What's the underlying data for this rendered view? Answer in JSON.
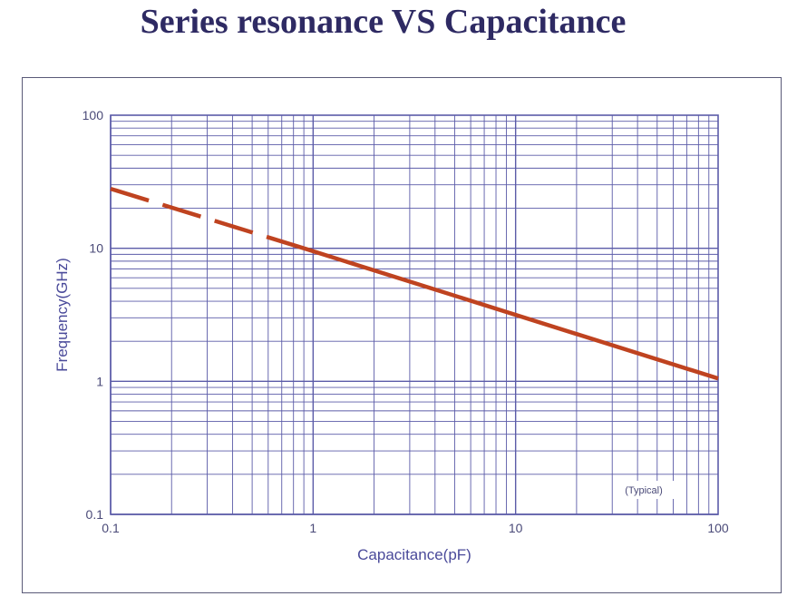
{
  "title": "Series resonance VS Capacitance",
  "colors": {
    "grid": "#5b5ba8",
    "series": "#bf4320",
    "text": "#4a4a78",
    "title": "#2e2a63"
  },
  "chart_data": {
    "type": "line",
    "title": "Series resonance VS Capacitance",
    "xlabel": "Capacitance(pF)",
    "ylabel": "Frequency(GHz)",
    "xscale": "log",
    "yscale": "log",
    "xlim": [
      0.1,
      100
    ],
    "ylim": [
      0.1,
      100
    ],
    "xticks": [
      "0.1",
      "1",
      "10",
      "100"
    ],
    "yticks": [
      "0.1",
      "1",
      "10",
      "100"
    ],
    "grid": true,
    "annotation": "(Typical)",
    "series": [
      {
        "style": "dashed",
        "x": [
          0.1,
          0.9
        ],
        "y": [
          28,
          10
        ]
      },
      {
        "style": "solid",
        "x": [
          0.9,
          100
        ],
        "y": [
          10,
          1.05
        ]
      }
    ]
  }
}
